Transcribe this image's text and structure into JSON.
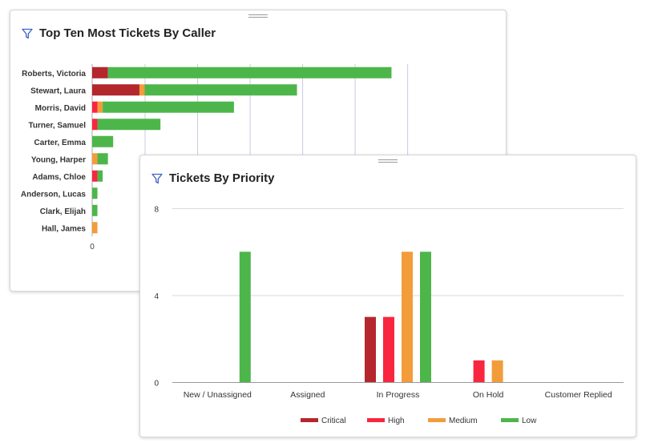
{
  "colors": {
    "Critical": "#b3272d",
    "High": "#f8263f",
    "Medium": "#f39c3b",
    "Low": "#4db64b",
    "filter_icon": "#3e63c9"
  },
  "cards": {
    "caller": {
      "title": "Top Ten Most Tickets By Caller",
      "filter_icon": "filter-icon"
    },
    "priority": {
      "title": "Tickets By Priority",
      "filter_icon": "filter-icon"
    }
  },
  "chart_data": [
    {
      "type": "bar",
      "orientation": "horizontal",
      "stacked": true,
      "title": "Top Ten Most Tickets By Caller",
      "categories": [
        "Roberts, Victoria",
        "Stewart, Laura",
        "Morris, David",
        "Turner, Samuel",
        "Carter, Emma",
        "Young, Harper",
        "Adams, Chloe",
        "Anderson, Lucas",
        "Clark, Elijah",
        "Hall, James"
      ],
      "series": [
        {
          "name": "Critical",
          "values": [
            3,
            9,
            0,
            0,
            0,
            0,
            0,
            0,
            0,
            0
          ]
        },
        {
          "name": "High",
          "values": [
            0,
            0,
            1,
            1,
            0,
            0,
            1,
            0,
            0,
            0
          ]
        },
        {
          "name": "Medium",
          "values": [
            0,
            1,
            1,
            0,
            0,
            1,
            0,
            0,
            0,
            1
          ]
        },
        {
          "name": "Low",
          "values": [
            54,
            29,
            25,
            12,
            4,
            2,
            1,
            1,
            1,
            0
          ]
        }
      ],
      "x_ticks": [
        0
      ],
      "xlim": [
        0,
        60
      ],
      "grid": true
    },
    {
      "type": "bar",
      "title": "Tickets By Priority",
      "categories": [
        "New / Unassigned",
        "Assigned",
        "In Progress",
        "On Hold",
        "Customer Replied"
      ],
      "series": [
        {
          "name": "Critical",
          "values": [
            0,
            0,
            3,
            0,
            0
          ]
        },
        {
          "name": "High",
          "values": [
            0,
            0,
            3,
            1,
            0
          ]
        },
        {
          "name": "Medium",
          "values": [
            0,
            0,
            6,
            1,
            0
          ]
        },
        {
          "name": "Low",
          "values": [
            6,
            0,
            6,
            0,
            0
          ]
        }
      ],
      "ylim": [
        0,
        8
      ],
      "y_ticks": [
        0,
        4,
        8
      ],
      "grid": true,
      "legend": "bottom"
    }
  ]
}
